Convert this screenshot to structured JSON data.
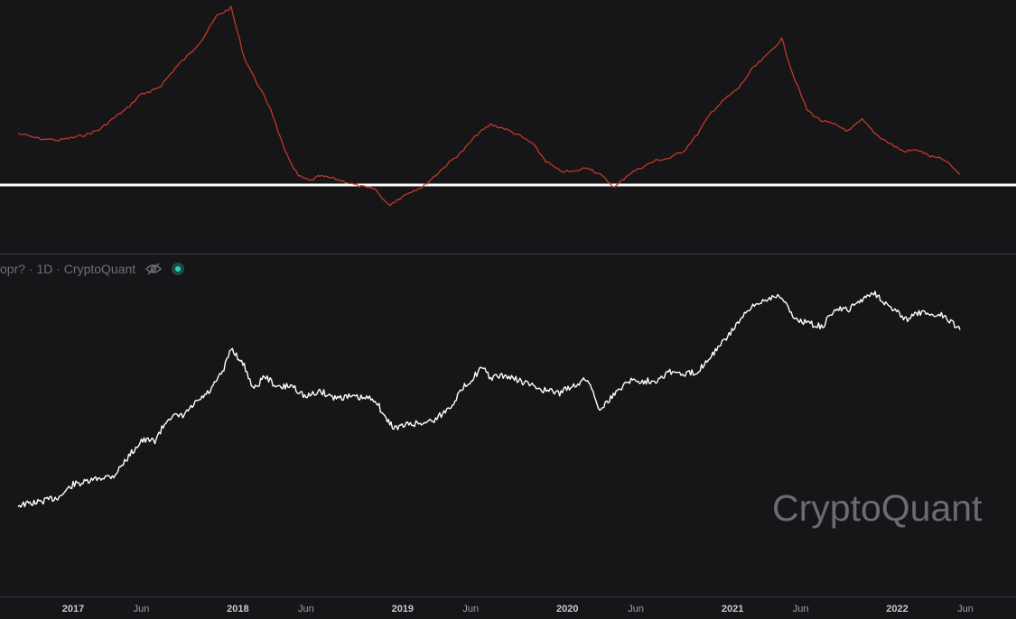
{
  "legend": {
    "text": "opr? · 1D · CryptoQuant",
    "eye_icon": "eye-off-icon",
    "status_icon": "status-dot-icon",
    "status_color": "#2bd1b4"
  },
  "watermark": "CryptoQuant",
  "colors": {
    "background": "#161518",
    "indicator_line": "#c0392b",
    "price_line": "#ffffff",
    "reference_line": "#ffffff"
  },
  "chart_data": [
    {
      "type": "line",
      "pane": "top",
      "name": "",
      "x_axis": "date",
      "x": [
        "2016-09-01",
        "2016-10-15",
        "2016-12-01",
        "2017-01-01",
        "2017-02-01",
        "2017-03-01",
        "2017-04-01",
        "2017-05-01",
        "2017-06-01",
        "2017-06-20",
        "2017-07-15",
        "2017-08-15",
        "2017-09-15",
        "2017-10-15",
        "2017-11-15",
        "2017-12-17",
        "2018-01-15",
        "2018-02-15",
        "2018-03-15",
        "2018-04-15",
        "2018-05-15",
        "2018-06-10",
        "2018-07-01",
        "2018-08-01",
        "2018-09-01",
        "2018-10-01",
        "2018-11-01",
        "2018-12-01",
        "2018-12-20",
        "2019-01-15",
        "2019-02-15",
        "2019-03-15",
        "2019-04-15",
        "2019-05-15",
        "2019-06-15",
        "2019-07-15",
        "2019-08-15",
        "2019-09-15",
        "2019-10-15",
        "2019-11-15",
        "2019-12-15",
        "2020-01-15",
        "2020-02-15",
        "2020-03-15",
        "2020-04-15",
        "2020-05-15",
        "2020-06-15",
        "2020-07-15",
        "2020-08-15",
        "2020-09-15",
        "2020-10-15",
        "2020-11-15",
        "2020-12-15",
        "2021-01-15",
        "2021-02-15",
        "2021-03-15",
        "2021-04-20",
        "2021-05-15",
        "2021-06-15",
        "2021-07-15",
        "2021-08-15",
        "2021-09-15",
        "2021-10-15",
        "2021-11-15",
        "2021-12-15",
        "2022-01-15",
        "2022-02-15",
        "2022-03-15",
        "2022-04-15",
        "2022-05-20"
      ],
      "y": [
        0.63,
        0.57,
        0.55,
        0.58,
        0.62,
        0.68,
        0.82,
        0.94,
        1.12,
        1.13,
        1.22,
        1.43,
        1.6,
        1.79,
        2.07,
        2.17,
        1.56,
        1.22,
        0.93,
        0.41,
        0.11,
        0.05,
        0.11,
        0.08,
        0.03,
        -0.02,
        -0.05,
        -0.25,
        -0.18,
        -0.09,
        -0.02,
        0.12,
        0.28,
        0.42,
        0.62,
        0.74,
        0.69,
        0.61,
        0.51,
        0.29,
        0.17,
        0.16,
        0.22,
        0.12,
        -0.03,
        0.13,
        0.22,
        0.3,
        0.33,
        0.42,
        0.62,
        0.89,
        1.05,
        1.19,
        1.43,
        1.57,
        1.79,
        1.35,
        0.92,
        0.79,
        0.74,
        0.66,
        0.8,
        0.62,
        0.51,
        0.41,
        0.43,
        0.35,
        0.31,
        0.13
      ],
      "reference_line": 0,
      "ylim": [
        -0.6,
        2.3
      ]
    },
    {
      "type": "line",
      "pane": "bottom",
      "name": "",
      "x_axis": "date",
      "x": [
        "2016-09-01",
        "2016-10-15",
        "2016-12-01",
        "2017-01-01",
        "2017-02-01",
        "2017-03-01",
        "2017-04-01",
        "2017-05-01",
        "2017-06-01",
        "2017-07-01",
        "2017-08-01",
        "2017-09-01",
        "2017-10-01",
        "2017-11-01",
        "2017-12-01",
        "2017-12-17",
        "2018-01-15",
        "2018-02-06",
        "2018-03-01",
        "2018-04-01",
        "2018-05-01",
        "2018-06-01",
        "2018-07-01",
        "2018-08-01",
        "2018-09-01",
        "2018-10-01",
        "2018-11-01",
        "2018-11-25",
        "2018-12-15",
        "2019-01-15",
        "2019-02-15",
        "2019-03-15",
        "2019-04-15",
        "2019-05-15",
        "2019-06-26",
        "2019-07-15",
        "2019-08-15",
        "2019-09-15",
        "2019-10-15",
        "2019-11-15",
        "2019-12-15",
        "2020-01-15",
        "2020-02-15",
        "2020-03-13",
        "2020-04-15",
        "2020-05-15",
        "2020-06-15",
        "2020-07-15",
        "2020-08-15",
        "2020-09-15",
        "2020-10-15",
        "2020-11-15",
        "2020-12-15",
        "2021-01-15",
        "2021-02-15",
        "2021-03-15",
        "2021-04-14",
        "2021-05-20",
        "2021-06-22",
        "2021-07-20",
        "2021-08-15",
        "2021-09-15",
        "2021-10-15",
        "2021-11-10",
        "2021-12-15",
        "2022-01-24",
        "2022-02-15",
        "2022-03-15",
        "2022-04-15",
        "2022-05-20"
      ],
      "y": [
        600,
        640,
        720,
        950,
        1000,
        1100,
        1150,
        1700,
        2500,
        2500,
        4200,
        4300,
        5800,
        7500,
        12000,
        19500,
        13000,
        7700,
        10500,
        8000,
        8500,
        6500,
        7500,
        6500,
        6600,
        6400,
        6300,
        4000,
        3300,
        3600,
        3700,
        4000,
        5200,
        8000,
        12500,
        10000,
        10500,
        9500,
        8400,
        7500,
        7200,
        8500,
        9800,
        5000,
        7000,
        9500,
        9300,
        9500,
        11600,
        10700,
        11500,
        16500,
        23000,
        35000,
        48000,
        57000,
        63500,
        37000,
        33000,
        31000,
        46000,
        45000,
        57000,
        67000,
        48000,
        36000,
        42000,
        41000,
        40000,
        29000
      ],
      "scale": "log",
      "ylim": [
        400,
        90000
      ]
    }
  ],
  "x_axis": {
    "ticks": [
      {
        "date": "2017-01-01",
        "label": "2017",
        "major": true
      },
      {
        "date": "2017-06-01",
        "label": "Jun",
        "major": false
      },
      {
        "date": "2018-01-01",
        "label": "2018",
        "major": true
      },
      {
        "date": "2018-06-01",
        "label": "Jun",
        "major": false
      },
      {
        "date": "2019-01-01",
        "label": "2019",
        "major": true
      },
      {
        "date": "2019-06-01",
        "label": "Jun",
        "major": false
      },
      {
        "date": "2020-01-01",
        "label": "2020",
        "major": true
      },
      {
        "date": "2020-06-01",
        "label": "Jun",
        "major": false
      },
      {
        "date": "2021-01-01",
        "label": "2021",
        "major": true
      },
      {
        "date": "2021-06-01",
        "label": "Jun",
        "major": false
      },
      {
        "date": "2022-01-01",
        "label": "2022",
        "major": true
      },
      {
        "date": "2022-06-01",
        "label": "Jun",
        "major": false
      }
    ]
  }
}
